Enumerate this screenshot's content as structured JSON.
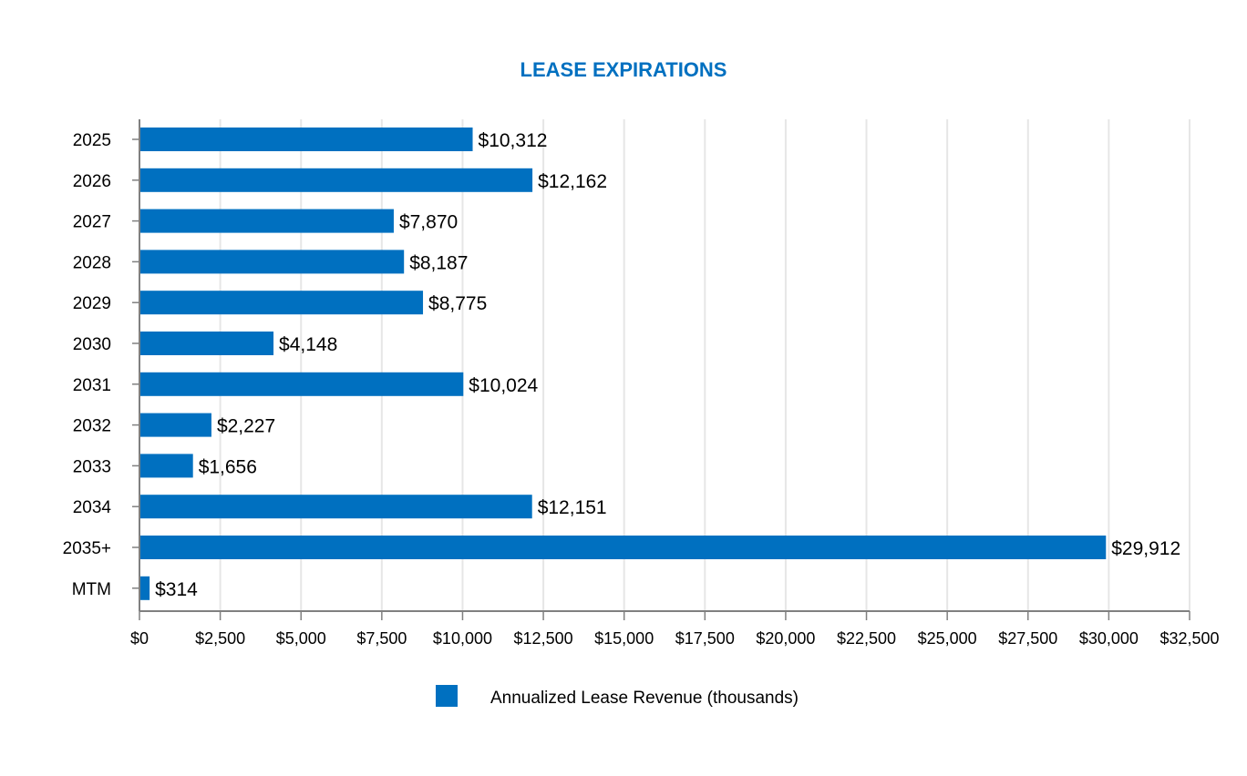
{
  "chart_data": {
    "type": "bar",
    "orientation": "horizontal",
    "title": "LEASE EXPIRATIONS",
    "categories": [
      "2025",
      "2026",
      "2027",
      "2028",
      "2029",
      "2030",
      "2031",
      "2032",
      "2033",
      "2034",
      "2035+",
      "MTM"
    ],
    "series": [
      {
        "name": "Annualized Lease Revenue (thousands)",
        "values": [
          10312,
          12162,
          7870,
          8187,
          8775,
          4148,
          10024,
          2227,
          1656,
          12151,
          29912,
          314
        ],
        "labels": [
          "$10,312",
          "$12,162",
          "$7,870",
          "$8,187",
          "$8,775",
          "$4,148",
          "$10,024",
          "$2,227",
          "$1,656",
          "$12,151",
          "$29,912",
          "$314"
        ]
      }
    ],
    "xlim": [
      0,
      32500
    ],
    "xticks": [
      0,
      2500,
      5000,
      7500,
      10000,
      12500,
      15000,
      17500,
      20000,
      22500,
      25000,
      27500,
      30000,
      32500
    ],
    "xtick_labels": [
      "$0",
      "$2,500",
      "$5,000",
      "$7,500",
      "$10,000",
      "$12,500",
      "$15,000",
      "$17,500",
      "$20,000",
      "$22,500",
      "$25,000",
      "$27,500",
      "$30,000",
      "$32,500"
    ],
    "grid": "vertical",
    "legend_position": "bottom",
    "colors": {
      "bar": "#0070C0",
      "title": "#0070C0",
      "grid": "#E6E6E6",
      "axis": "#808080"
    }
  }
}
